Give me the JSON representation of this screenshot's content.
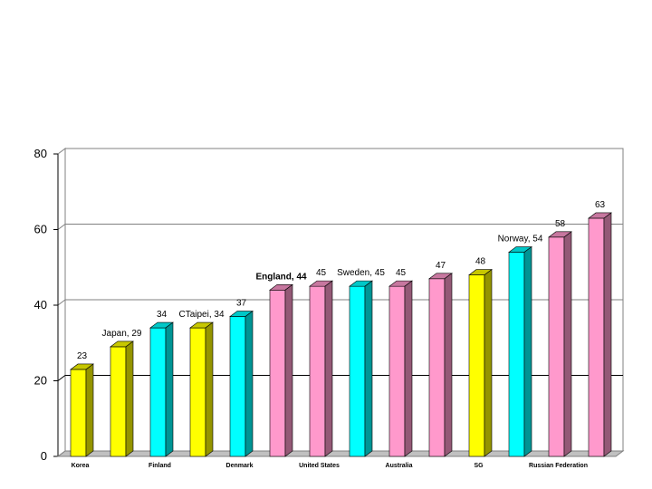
{
  "chart_data": {
    "type": "bar",
    "title": "",
    "xlabel": "",
    "ylabel": "",
    "ylim": [
      0,
      80
    ],
    "yticks": [
      0,
      20,
      40,
      60,
      80
    ],
    "grid": true,
    "legend": "none",
    "style": "3d-columns",
    "bars": [
      {
        "value": 23,
        "color": "#ffff00",
        "axis_label": "Korea",
        "data_label": "23"
      },
      {
        "value": 29,
        "color": "#ffff00",
        "axis_label": "",
        "data_label": "Japan, 29"
      },
      {
        "value": 34,
        "color": "#00ffff",
        "axis_label": "Finland",
        "data_label": "34"
      },
      {
        "value": 34,
        "color": "#ffff00",
        "axis_label": "",
        "data_label": "CTaipei, 34"
      },
      {
        "value": 37,
        "color": "#00ffff",
        "axis_label": "Denmark",
        "data_label": "37"
      },
      {
        "value": 44,
        "color": "#ff99cc",
        "axis_label": "",
        "data_label": "England, 44",
        "bold": true
      },
      {
        "value": 45,
        "color": "#ff99cc",
        "axis_label": "United States",
        "data_label": "45"
      },
      {
        "value": 45,
        "color": "#00ffff",
        "axis_label": "",
        "data_label": "Sweden, 45"
      },
      {
        "value": 45,
        "color": "#ff99cc",
        "axis_label": "Australia",
        "data_label": "45"
      },
      {
        "value": 47,
        "color": "#ff99cc",
        "axis_label": "",
        "data_label": "47"
      },
      {
        "value": 48,
        "color": "#ffff00",
        "axis_label": "SG",
        "data_label": "48"
      },
      {
        "value": 54,
        "color": "#00ffff",
        "axis_label": "",
        "data_label": "Norway, 54"
      },
      {
        "value": 58,
        "color": "#ff99cc",
        "axis_label": "Russian Federation",
        "data_label": "58"
      },
      {
        "value": 63,
        "color": "#ff99cc",
        "axis_label": "",
        "data_label": "63"
      }
    ]
  }
}
